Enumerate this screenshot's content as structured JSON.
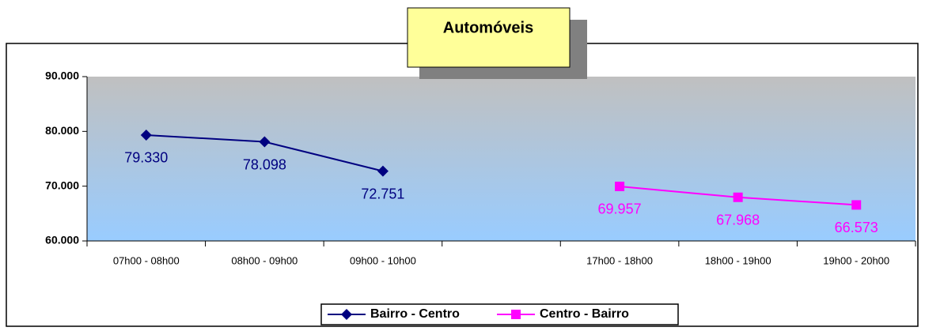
{
  "chart_data": {
    "type": "line",
    "title": "Automóveis",
    "categories": [
      "07h00 - 08h00",
      "08h00 - 09h00",
      "09h00 - 10h00",
      null,
      "17h00 - 18h00",
      "18h00 - 19h00",
      "19h00 - 20h00"
    ],
    "series": [
      {
        "name": "Bairro - Centro",
        "color": "#000080",
        "marker": "diamond",
        "values": [
          79330,
          78098,
          72751,
          null,
          null,
          null,
          null
        ],
        "value_labels": [
          "79.330",
          "78.098",
          "72.751",
          null,
          null,
          null,
          null
        ]
      },
      {
        "name": "Centro - Bairro",
        "color": "#ff00ff",
        "marker": "square",
        "values": [
          null,
          null,
          null,
          null,
          69957,
          67968,
          66573
        ],
        "value_labels": [
          null,
          null,
          null,
          null,
          "69.957",
          "67.968",
          "66.573"
        ]
      }
    ],
    "ylim": [
      60000,
      90000
    ],
    "yticks": [
      {
        "value": 60000,
        "label": "60.000"
      },
      {
        "value": 70000,
        "label": "70.000"
      },
      {
        "value": 80000,
        "label": "80.000"
      },
      {
        "value": 90000,
        "label": "90.000"
      }
    ],
    "legend": "bottom"
  }
}
